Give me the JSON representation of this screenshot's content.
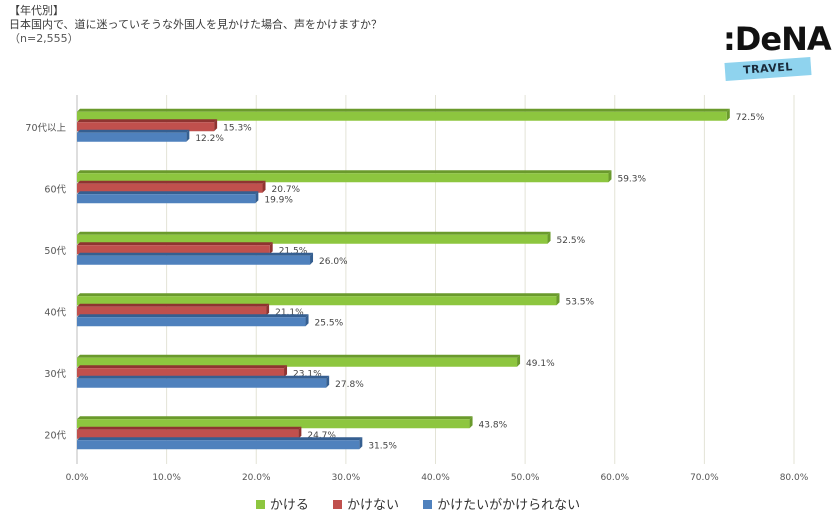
{
  "header": {
    "tag": "【年代別】",
    "question": "日本国内で、道に迷っていそうな外国人を見かけた場合、声をかけますか？",
    "sample": "（n=2,555）"
  },
  "logo": {
    "brand": ":DeNA",
    "tag": "TRAVEL"
  },
  "colors": {
    "kakeru": "#8dc63f",
    "kakenai": "#c0504d",
    "kaketai": "#4f81bd"
  },
  "chart_data": {
    "type": "bar",
    "orientation": "horizontal",
    "categories": [
      "70代以上",
      "60代",
      "50代",
      "40代",
      "30代",
      "20代"
    ],
    "series": [
      {
        "name": "かける",
        "values": [
          72.5,
          59.3,
          52.5,
          53.5,
          49.1,
          43.8
        ]
      },
      {
        "name": "かけない",
        "values": [
          15.3,
          20.7,
          21.5,
          21.1,
          23.1,
          24.7
        ]
      },
      {
        "name": "かけたいがかけられない",
        "values": [
          12.2,
          19.9,
          26.0,
          25.5,
          27.8,
          31.5
        ]
      }
    ],
    "value_labels": [
      [
        "72.5%",
        "59.3%",
        "52.5%",
        "53.5%",
        "49.1%",
        "43.8%"
      ],
      [
        "15.3%",
        "20.7%",
        "21.5%",
        "21.1%",
        "23.1%",
        "24.7%"
      ],
      [
        "12.2%",
        "19.9%",
        "26.0%",
        "25.5%",
        "27.8%",
        "31.5%"
      ]
    ],
    "x_ticks": [
      "0.0%",
      "10.0%",
      "20.0%",
      "30.0%",
      "40.0%",
      "50.0%",
      "60.0%",
      "70.0%",
      "80.0%"
    ],
    "xlim": [
      0,
      80
    ],
    "grid": true,
    "legend_position": "bottom"
  }
}
